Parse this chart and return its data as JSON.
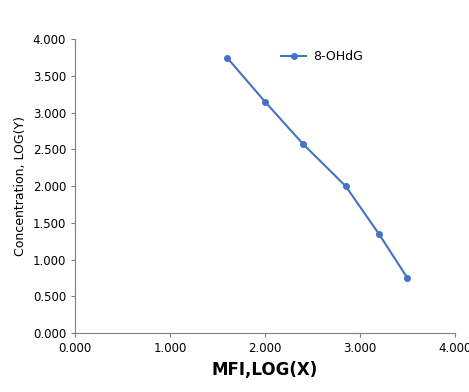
{
  "x": [
    1.6,
    2.0,
    2.4,
    2.85,
    3.2,
    3.5
  ],
  "y": [
    3.75,
    3.15,
    2.575,
    2.0,
    1.35,
    0.75
  ],
  "line_color": "#4472C4",
  "marker": "o",
  "marker_size": 4,
  "line_width": 1.5,
  "legend_label": "8-OHdG",
  "xlabel": "MFI,LOG(X)",
  "ylabel": "Concentration, LOG(Y)",
  "xlim": [
    0.0,
    4.0
  ],
  "ylim": [
    0.0,
    4.0
  ],
  "xticks": [
    0.0,
    1.0,
    2.0,
    3.0,
    4.0
  ],
  "yticks": [
    0.0,
    0.5,
    1.0,
    1.5,
    2.0,
    2.5,
    3.0,
    3.5,
    4.0
  ],
  "xtick_labels": [
    "0.000",
    "1.000",
    "2.000",
    "3.000",
    "4.000"
  ],
  "ytick_labels": [
    "0.000",
    "0.500",
    "1.000",
    "1.500",
    "2.000",
    "2.500",
    "3.000",
    "3.500",
    "4.000"
  ],
  "background_color": "#ffffff",
  "xlabel_fontsize": 12,
  "ylabel_fontsize": 9,
  "tick_fontsize": 8.5,
  "legend_fontsize": 9,
  "xlabel_fontweight": "bold",
  "ylabel_fontweight": "normal",
  "spine_color": "#7f7f7f"
}
